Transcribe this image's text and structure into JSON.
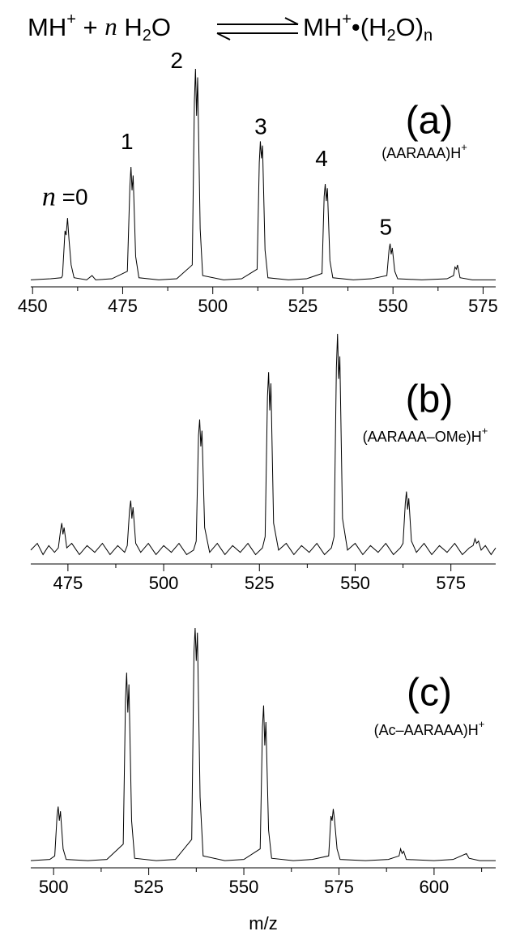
{
  "equation": {
    "left": [
      "MH",
      "+",
      " + ",
      "n",
      " H",
      "2",
      "O"
    ],
    "right": [
      "MH",
      "+",
      "•(H",
      "2",
      "O)",
      "n"
    ]
  },
  "chart_data": [
    {
      "type": "line",
      "label": "(a)",
      "compound": [
        "(AARAAA)H",
        "+"
      ],
      "color": "#000000",
      "xlim": [
        449.5,
        578.5
      ],
      "xticks": [
        450,
        475,
        500,
        525,
        550,
        575
      ],
      "xminorticks": [
        462.5,
        487.5,
        512.5,
        537.5,
        562.5
      ],
      "ylim": [
        0,
        100
      ],
      "x": [
        449.5,
        455,
        458,
        458.3,
        459.0,
        459.3,
        459.7,
        460.1,
        460.7,
        461.5,
        465,
        466.5,
        467.5,
        472,
        476.3,
        477.0,
        477.3,
        477.6,
        477.9,
        478.6,
        479.5,
        485,
        490,
        494.3,
        494.9,
        495.2,
        495.5,
        495.8,
        496.5,
        497.2,
        503,
        508,
        512.3,
        512.9,
        513.2,
        513.5,
        513.8,
        514.5,
        515.3,
        521,
        526,
        530.3,
        530.9,
        531.2,
        531.5,
        531.8,
        532.5,
        533.3,
        539,
        544,
        548.3,
        548.9,
        549.2,
        549.5,
        549.8,
        550.5,
        551.3,
        558,
        565,
        566.8,
        567.2,
        567.6,
        567.9,
        568.6,
        572,
        578.5
      ],
      "values": [
        1,
        1.5,
        2,
        3,
        24,
        22,
        30,
        20,
        8,
        2,
        1,
        3,
        1,
        1.5,
        5,
        45,
        54,
        43,
        50,
        12,
        2,
        1,
        1.5,
        8,
        85,
        100,
        78,
        96,
        25,
        3,
        1,
        1.5,
        6,
        56,
        66,
        58,
        64,
        15,
        2,
        1,
        1.5,
        4,
        40,
        46,
        38,
        44,
        10,
        2,
        1,
        1.5,
        3,
        15,
        18,
        13,
        16,
        5,
        1.5,
        1,
        1.5,
        3,
        7,
        6,
        8,
        2,
        1,
        1
      ],
      "annotations": [
        {
          "text": [
            "n",
            " =0"
          ],
          "x": 459,
          "y": 39
        },
        {
          "text": "1",
          "x": 476.2,
          "y": 65
        },
        {
          "text": "2",
          "x": 490,
          "y": 103
        },
        {
          "text": "3",
          "x": 513.3,
          "y": 72
        },
        {
          "text": "4",
          "x": 530.2,
          "y": 57
        },
        {
          "text": "5",
          "x": 548,
          "y": 25
        }
      ]
    },
    {
      "type": "line",
      "label": "(b)",
      "compound": [
        "(AARAAA–OMe)H",
        "+"
      ],
      "color": "#000000",
      "xlim": [
        465.3,
        586.7
      ],
      "xticks": [
        475,
        500,
        525,
        550,
        575
      ],
      "xminorticks": [
        487.5,
        512.5,
        537.5,
        562.5
      ],
      "ylim": [
        0,
        100
      ],
      "x": [
        465.3,
        467,
        468.5,
        470,
        471.5,
        472.5,
        473.1,
        473.4,
        473.7,
        474.0,
        474.7,
        476,
        478,
        480,
        482,
        484,
        486,
        488,
        489.8,
        490.5,
        491.1,
        491.4,
        491.7,
        492.0,
        492.7,
        494,
        496,
        498,
        500,
        502,
        504,
        506,
        507.8,
        508.5,
        509.1,
        509.4,
        509.7,
        510.0,
        510.7,
        512,
        514,
        516,
        518,
        520,
        522,
        524,
        525.8,
        526.5,
        527.1,
        527.4,
        527.7,
        528.0,
        528.7,
        530,
        532,
        534,
        536,
        538,
        540,
        542,
        543.8,
        544.5,
        545.1,
        545.4,
        545.7,
        546.0,
        546.7,
        548,
        550,
        552,
        554,
        556,
        558,
        560,
        561.8,
        562.5,
        563.1,
        563.4,
        563.7,
        564.0,
        564.7,
        566,
        568,
        570,
        572,
        574,
        576,
        578,
        579.8,
        580.8,
        581.3,
        581.7,
        582.2,
        582.9,
        584,
        585.5,
        586.7
      ],
      "values": [
        4,
        7,
        2,
        6,
        3,
        5,
        13,
        16,
        11,
        14,
        5,
        7,
        2,
        6,
        3,
        7,
        2,
        6,
        3,
        6,
        22,
        26,
        18,
        23,
        7,
        3,
        7,
        2,
        6,
        3,
        7,
        2,
        4,
        8,
        55,
        62,
        50,
        57,
        14,
        3,
        7,
        2,
        6,
        3,
        7,
        2,
        5,
        10,
        72,
        83,
        66,
        78,
        16,
        4,
        7,
        2,
        6,
        3,
        7,
        2,
        5,
        10,
        85,
        100,
        80,
        90,
        18,
        4,
        7,
        2,
        6,
        3,
        7,
        2,
        5,
        7,
        25,
        30,
        22,
        27,
        8,
        3,
        7,
        2,
        6,
        3,
        7,
        2,
        5,
        6,
        9,
        7,
        8,
        4,
        6,
        2,
        5
      ]
    },
    {
      "type": "line",
      "label": "(c)",
      "compound": [
        "(Ac–AARAAA)H",
        "+"
      ],
      "color": "#000000",
      "xlabel": "m/z",
      "xlim": [
        494,
        616.2
      ],
      "xticks": [
        500,
        525,
        550,
        575,
        600
      ],
      "xminorticks": [
        512.5,
        537.5,
        562.5,
        587.5,
        612.5
      ],
      "ylim": [
        0,
        100
      ],
      "x": [
        494,
        499,
        500.3,
        500.9,
        501.2,
        501.5,
        501.8,
        502.5,
        503.3,
        509,
        514,
        518.3,
        518.9,
        519.2,
        519.5,
        519.8,
        520.5,
        521.3,
        527,
        532,
        536.3,
        536.9,
        537.2,
        537.5,
        537.8,
        538.5,
        539.3,
        545,
        550,
        554.3,
        554.9,
        555.2,
        555.5,
        555.8,
        556.5,
        557.3,
        563,
        568,
        572.3,
        572.9,
        573.2,
        573.5,
        573.8,
        574.5,
        575.3,
        582,
        588,
        590.8,
        591.2,
        591.6,
        592.0,
        592.7,
        600,
        605,
        608.5,
        609.2,
        612,
        616.2
      ],
      "values": [
        1,
        1.5,
        3,
        20,
        24,
        18,
        22,
        6,
        1.5,
        1,
        1.5,
        8,
        70,
        81,
        64,
        76,
        18,
        2,
        1,
        1.5,
        10,
        90,
        100,
        86,
        98,
        28,
        3,
        1,
        1.5,
        6,
        58,
        67,
        50,
        60,
        14,
        2,
        1,
        1.5,
        3,
        20,
        18,
        23,
        19,
        6,
        1.5,
        1,
        1.5,
        3,
        6,
        4,
        5,
        1.5,
        1,
        1.5,
        4,
        2,
        1,
        1
      ]
    }
  ]
}
